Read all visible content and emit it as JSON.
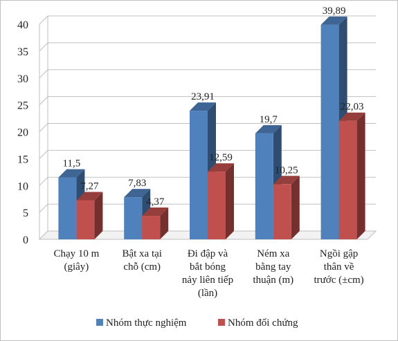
{
  "chart_data": {
    "type": "bar",
    "style": "3d-clustered-column",
    "categories": [
      [
        "Chạy 10 m",
        "(giây)"
      ],
      [
        "Bật xa tại",
        "chỗ (cm)"
      ],
      [
        "Đi đập và",
        "bắt bóng",
        "nảy liên tiếp",
        "(lần)"
      ],
      [
        "Ném xa",
        "bằng tay",
        "thuận (m)"
      ],
      [
        "Ngồi gập",
        "thân về",
        "trước (±cm)"
      ]
    ],
    "series": [
      {
        "name": "Nhóm thực nghiệm",
        "color": "#4f81bd",
        "values": [
          11.5,
          7.83,
          23.91,
          19.7,
          39.89
        ],
        "labels": [
          "11,5",
          "7,83",
          "23,91",
          "19,7",
          "39,89"
        ]
      },
      {
        "name": "Nhóm đối chứng",
        "color": "#c0504d",
        "values": [
          7.27,
          4.37,
          12.59,
          10.25,
          22.03
        ],
        "labels": [
          "7,27",
          "4,37",
          "12,59",
          "10,25",
          "22,03"
        ]
      }
    ],
    "ylim": [
      0,
      40
    ],
    "yticks": [
      0,
      5,
      10,
      15,
      20,
      25,
      30,
      35,
      40
    ],
    "grid": true,
    "legend_position": "bottom",
    "title": "",
    "xlabel": "",
    "ylabel": ""
  }
}
